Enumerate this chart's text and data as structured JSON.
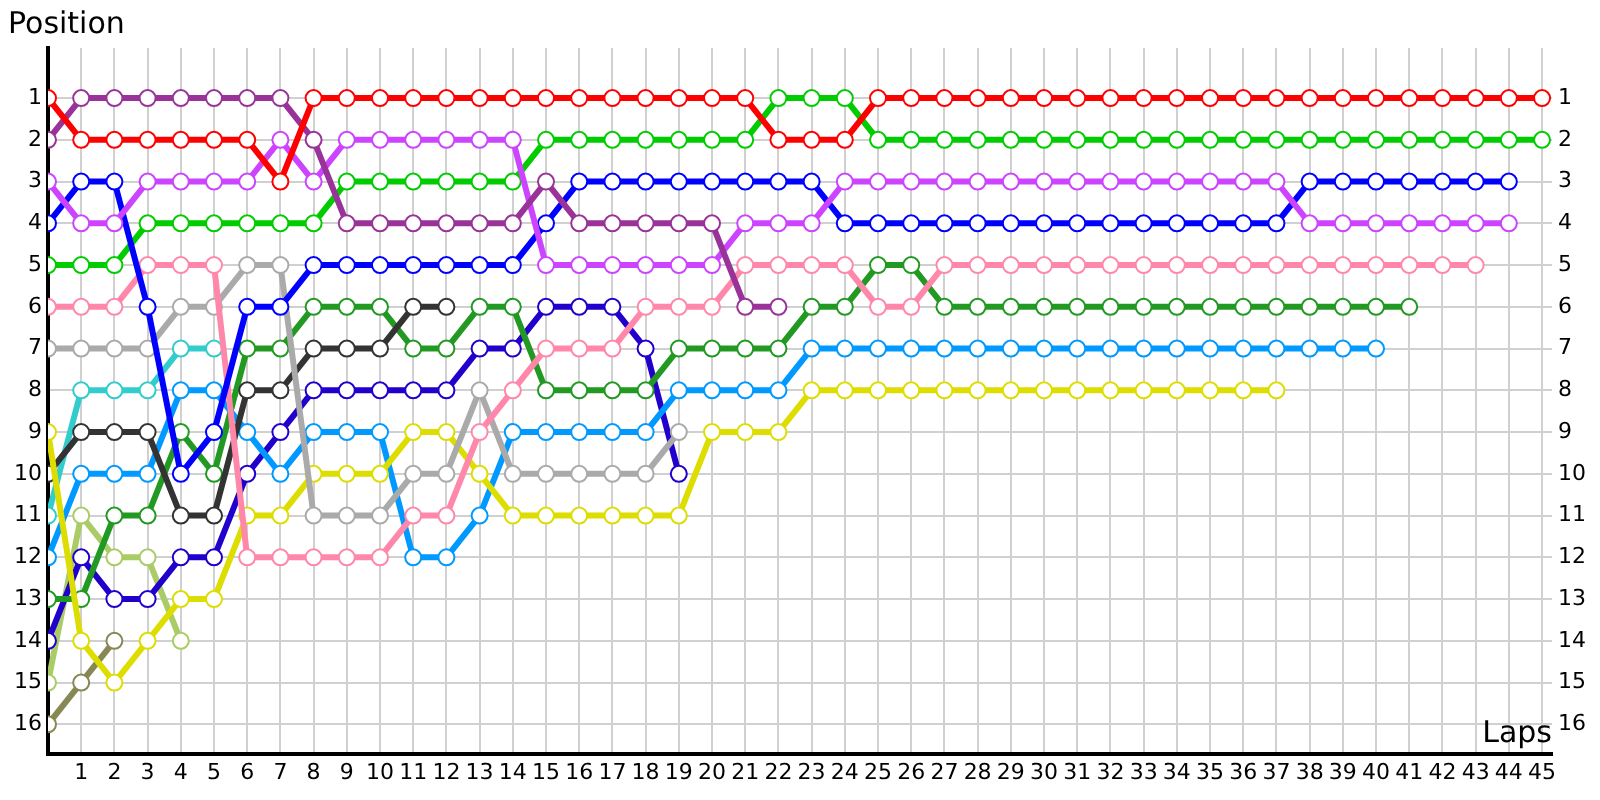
{
  "chart_data": {
    "type": "line",
    "xlabel": "Laps",
    "ylabel": "Position",
    "x": [
      0,
      1,
      2,
      3,
      4,
      5,
      6,
      7,
      8,
      9,
      10,
      11,
      12,
      13,
      14,
      15,
      16,
      17,
      18,
      19,
      20,
      21,
      22,
      23,
      24,
      25,
      26,
      27,
      28,
      29,
      30,
      31,
      32,
      33,
      34,
      35,
      36,
      37,
      38,
      39,
      40,
      41,
      42,
      43,
      44,
      45
    ],
    "xlim": [
      0,
      45.3
    ],
    "xticks": [
      1,
      2,
      3,
      4,
      5,
      6,
      7,
      8,
      9,
      10,
      11,
      12,
      13,
      14,
      15,
      16,
      17,
      18,
      19,
      20,
      21,
      22,
      23,
      24,
      25,
      26,
      27,
      28,
      29,
      30,
      31,
      32,
      33,
      34,
      35,
      36,
      37,
      38,
      39,
      40,
      41,
      42,
      43,
      44,
      45
    ],
    "ylim": [
      16.7,
      -0.2
    ],
    "yticks": [
      1,
      2,
      3,
      4,
      5,
      6,
      7,
      8,
      9,
      10,
      11,
      12,
      13,
      14,
      15,
      16
    ],
    "y2lim": [
      16.7,
      -0.2
    ],
    "y2ticks": [
      1,
      2,
      3,
      4,
      5,
      6,
      7,
      8,
      9,
      10,
      11,
      12,
      13,
      14,
      15,
      16
    ],
    "grid": true,
    "legend": false,
    "marker": "circle",
    "line_style": "solid",
    "series": [
      {
        "color": "#ff0000",
        "values": [
          1,
          2,
          2,
          2,
          2,
          2,
          2,
          3,
          1,
          1,
          1,
          1,
          1,
          1,
          1,
          1,
          1,
          1,
          1,
          1,
          1,
          1,
          2,
          2,
          2,
          1,
          1,
          1,
          1,
          1,
          1,
          1,
          1,
          1,
          1,
          1,
          1,
          1,
          1,
          1,
          1,
          1,
          1,
          1,
          1,
          1
        ]
      },
      {
        "color": "#993399",
        "values": [
          2,
          1,
          1,
          1,
          1,
          1,
          1,
          1,
          2,
          4,
          4,
          4,
          4,
          4,
          4,
          3,
          4,
          4,
          4,
          4,
          4,
          6,
          6,
          null,
          null,
          null,
          null,
          null,
          null,
          null,
          null,
          null,
          null,
          null,
          null,
          null,
          null,
          null,
          null,
          null,
          null,
          null,
          null,
          null,
          null,
          null
        ]
      },
      {
        "color": "#cc44ff",
        "values": [
          3,
          4,
          4,
          3,
          3,
          3,
          3,
          2,
          3,
          2,
          2,
          2,
          2,
          2,
          2,
          5,
          5,
          5,
          5,
          5,
          5,
          4,
          4,
          4,
          3,
          3,
          3,
          3,
          3,
          3,
          3,
          3,
          3,
          3,
          3,
          3,
          3,
          3,
          4,
          4,
          4,
          4,
          4,
          4,
          4,
          null
        ]
      },
      {
        "color": "#0000ff",
        "values": [
          4,
          3,
          3,
          6,
          10,
          9,
          6,
          6,
          5,
          5,
          5,
          5,
          5,
          5,
          5,
          4,
          3,
          3,
          3,
          3,
          3,
          3,
          3,
          3,
          4,
          4,
          4,
          4,
          4,
          4,
          4,
          4,
          4,
          4,
          4,
          4,
          4,
          4,
          3,
          3,
          3,
          3,
          3,
          3,
          3,
          null
        ]
      },
      {
        "color": "#00cc00",
        "values": [
          5,
          5,
          5,
          4,
          4,
          4,
          4,
          4,
          4,
          3,
          3,
          3,
          3,
          3,
          3,
          2,
          2,
          2,
          2,
          2,
          2,
          2,
          1,
          1,
          1,
          2,
          2,
          2,
          2,
          2,
          2,
          2,
          2,
          2,
          2,
          2,
          2,
          2,
          2,
          2,
          2,
          2,
          2,
          2,
          2,
          2
        ]
      },
      {
        "color": "#ff88aa",
        "values": [
          6,
          6,
          6,
          5,
          5,
          5,
          12,
          12,
          12,
          12,
          12,
          11,
          11,
          9,
          8,
          7,
          7,
          7,
          6,
          6,
          6,
          5,
          5,
          5,
          5,
          6,
          6,
          5,
          5,
          5,
          5,
          5,
          5,
          5,
          5,
          5,
          5,
          5,
          5,
          5,
          5,
          5,
          5,
          5,
          null,
          null
        ]
      },
      {
        "color": "#aaaaaa",
        "values": [
          7,
          7,
          7,
          7,
          6,
          6,
          5,
          5,
          11,
          11,
          11,
          10,
          10,
          8,
          10,
          10,
          10,
          10,
          10,
          9,
          null,
          null,
          null,
          null,
          null,
          null,
          null,
          null,
          null,
          null,
          null,
          null,
          null,
          null,
          null,
          null,
          null,
          null,
          null,
          null,
          null,
          null,
          null,
          null,
          null,
          null
        ]
      },
      {
        "color": "#dddd00",
        "values": [
          9,
          14,
          15,
          14,
          13,
          13,
          11,
          11,
          10,
          10,
          10,
          9,
          9,
          10,
          11,
          11,
          11,
          11,
          11,
          11,
          9,
          9,
          9,
          8,
          8,
          8,
          8,
          8,
          8,
          8,
          8,
          8,
          8,
          8,
          8,
          8,
          8,
          8,
          null,
          null,
          null,
          null,
          null,
          null,
          null,
          null
        ]
      },
      {
        "color": "#333333",
        "values": [
          10,
          9,
          9,
          9,
          11,
          11,
          8,
          8,
          7,
          7,
          7,
          6,
          6,
          null,
          null,
          null,
          null,
          null,
          null,
          null,
          null,
          null,
          null,
          null,
          null,
          null,
          null,
          null,
          null,
          null,
          null,
          null,
          null,
          null,
          null,
          null,
          null,
          null,
          null,
          null,
          null,
          null,
          null,
          null,
          null,
          null
        ]
      },
      {
        "color": "#33cccc",
        "values": [
          11,
          8,
          8,
          8,
          7,
          7,
          null,
          null,
          null,
          null,
          null,
          null,
          null,
          null,
          null,
          null,
          null,
          null,
          null,
          null,
          null,
          null,
          null,
          null,
          null,
          null,
          null,
          null,
          null,
          null,
          null,
          null,
          null,
          null,
          null,
          null,
          null,
          null,
          null,
          null,
          null,
          null,
          null,
          null,
          null,
          null
        ]
      },
      {
        "color": "#0099ff",
        "values": [
          12,
          10,
          10,
          10,
          8,
          8,
          9,
          10,
          9,
          9,
          9,
          12,
          12,
          11,
          9,
          9,
          9,
          9,
          9,
          8,
          8,
          8,
          8,
          7,
          7,
          7,
          7,
          7,
          7,
          7,
          7,
          7,
          7,
          7,
          7,
          7,
          7,
          7,
          7,
          7,
          7,
          null,
          null,
          null,
          null,
          null
        ]
      },
      {
        "color": "#229922",
        "values": [
          13,
          13,
          11,
          11,
          9,
          10,
          7,
          7,
          6,
          6,
          6,
          7,
          7,
          6,
          6,
          8,
          8,
          8,
          8,
          7,
          7,
          7,
          7,
          6,
          6,
          5,
          5,
          6,
          6,
          6,
          6,
          6,
          6,
          6,
          6,
          6,
          6,
          6,
          6,
          6,
          6,
          6,
          null,
          null,
          null,
          null
        ]
      },
      {
        "color": "#2200cc",
        "values": [
          14,
          12,
          13,
          13,
          12,
          12,
          10,
          9,
          8,
          8,
          8,
          8,
          8,
          7,
          7,
          6,
          6,
          6,
          7,
          10,
          null,
          null,
          null,
          null,
          null,
          null,
          null,
          null,
          null,
          null,
          null,
          null,
          null,
          null,
          null,
          null,
          null,
          null,
          null,
          null,
          null,
          null,
          null,
          null,
          null,
          null
        ]
      },
      {
        "color": "#aacc66",
        "values": [
          15,
          11,
          12,
          12,
          14,
          null,
          null,
          null,
          null,
          null,
          null,
          null,
          null,
          null,
          null,
          null,
          null,
          null,
          null,
          null,
          null,
          null,
          null,
          null,
          null,
          null,
          null,
          null,
          null,
          null,
          null,
          null,
          null,
          null,
          null,
          null,
          null,
          null,
          null,
          null,
          null,
          null,
          null,
          null,
          null,
          null
        ]
      },
      {
        "color": "#888855",
        "values": [
          16,
          15,
          14,
          null,
          null,
          null,
          null,
          null,
          null,
          null,
          null,
          null,
          null,
          null,
          null,
          null,
          null,
          null,
          null,
          null,
          null,
          null,
          null,
          null,
          null,
          null,
          null,
          null,
          null,
          null,
          null,
          null,
          null,
          null,
          null,
          null,
          null,
          null,
          null,
          null,
          null,
          null,
          null,
          null,
          null,
          null
        ]
      }
    ]
  }
}
